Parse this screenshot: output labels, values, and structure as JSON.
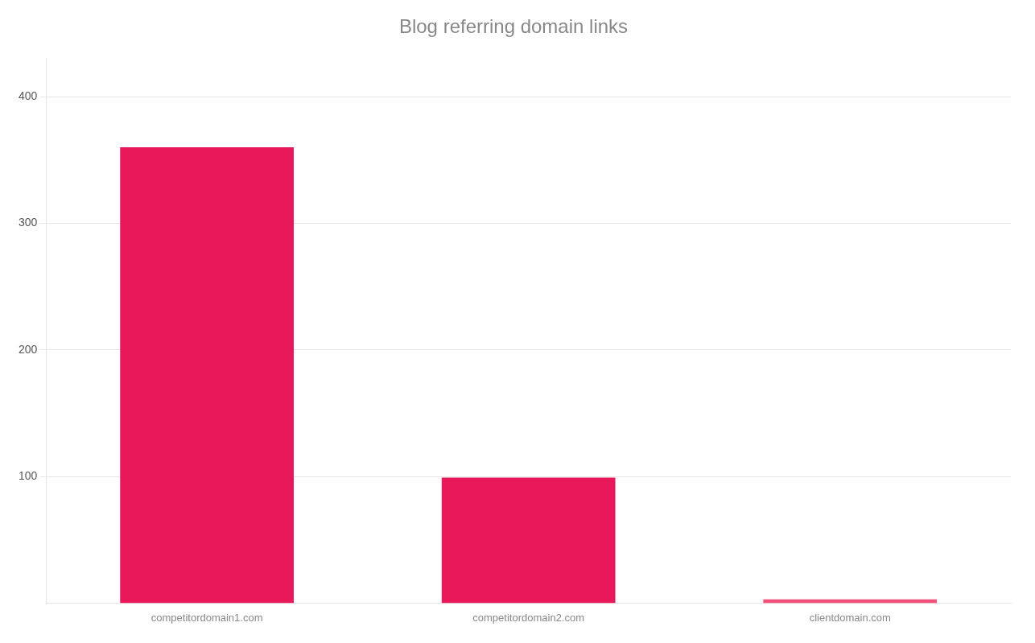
{
  "chart_data": {
    "type": "bar",
    "title": "Blog referring domain links",
    "categories": [
      "competitordomain1.com",
      "competitordomain2.com",
      "clientdomain.com"
    ],
    "values": [
      360,
      99,
      3
    ],
    "colors": [
      "#E8185A",
      "#E8185A",
      "#F0507A"
    ],
    "ylim": [
      0,
      430
    ],
    "yticks": [
      100,
      200,
      300,
      400
    ],
    "grid": true
  }
}
